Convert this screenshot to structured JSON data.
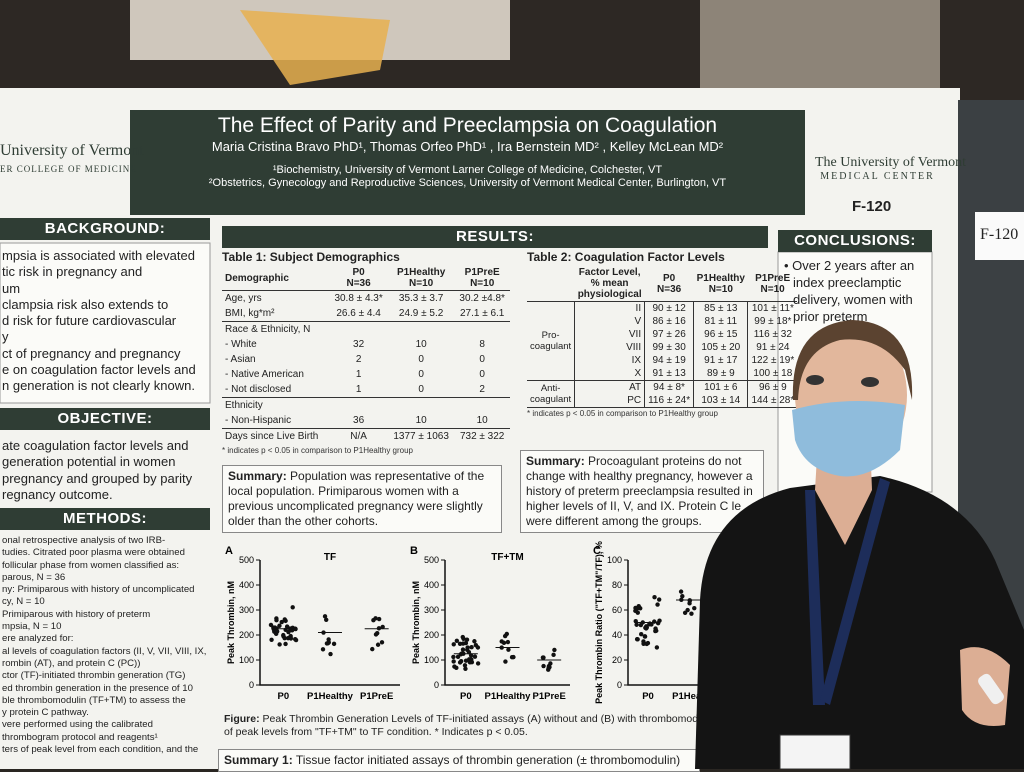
{
  "header": {
    "title": "The Effect of Parity and Preeclampsia on Coagulation",
    "authors": "Maria Cristina Bravo PhD¹, Thomas Orfeo PhD¹ , Ira Bernstein MD² , Kelley McLean MD²",
    "affiliations": [
      "¹Biochemistry, University of Vermont Larner College of Medicine, Colchester, VT",
      "²Obstetrics, Gynecology and Reproductive Sciences, University of Vermont Medical Center, Burlington, VT"
    ],
    "logo_left": [
      "University of Vermont",
      "ER COLLEGE OF MEDICINE"
    ],
    "logo_right": [
      "The University of Vermont",
      "MEDICAL CENTER"
    ],
    "booth": "F-120",
    "wall_sign": "F-120"
  },
  "background": {
    "heading": "BACKGROUND:",
    "lines": [
      "mpsia is associated with elevated",
      "tic risk in pregnancy and",
      "um",
      "clampsia risk also extends to",
      "d risk for future cardiovascular",
      "y",
      "ct of pregnancy and pregnancy",
      "e on coagulation factor levels and",
      "n generation is not clearly known."
    ]
  },
  "objective": {
    "heading": "OBJECTIVE:",
    "lines": [
      "ate coagulation factor levels and",
      "generation potential in women",
      "pregnancy and grouped by parity",
      "regnancy outcome."
    ]
  },
  "methods": {
    "heading": "METHODS:",
    "lines": [
      "onal retrospective analysis of two IRB-",
      "tudies. Citrated poor plasma were obtained",
      "follicular phase from women classified as:",
      "parous, N = 36",
      "ny: Primiparous with history of uncomplicated",
      "cy, N = 10",
      "Primiparous with history of preterm",
      "mpsia, N = 10",
      "ere analyzed for:",
      "al levels of coagulation factors (II, V, VII, VIII, IX,",
      "rombin (AT), and protein C (PC))",
      "ctor (TF)-initiated thrombin generation (TG)",
      "ed thrombin generation in the presence of 10",
      "ble thrombomodulin (TF+TM) to assess the",
      "y protein C pathway.",
      "vere performed using the calibrated",
      "thrombogram protocol and reagents¹",
      "ters of peak level from each condition, and the"
    ]
  },
  "results": {
    "heading": "RESULTS:"
  },
  "table1": {
    "title": "Table 1: Subject Demographics",
    "header": [
      [
        "Demographic"
      ],
      [
        "P0",
        "N=36"
      ],
      [
        "P1Healthy",
        "N=10"
      ],
      [
        "P1PreE",
        "N=10"
      ]
    ],
    "rows": [
      [
        "Age, yrs",
        "30.8 ± 4.3*",
        "35.3 ± 3.7",
        "30.2 ±4.8*"
      ],
      [
        "BMI, kg*m²",
        "26.6 ± 4.4",
        "24.9 ± 5.2",
        "27.1 ± 6.1"
      ],
      [
        "Race & Ethnicity, N"
      ],
      [
        "- White",
        "32",
        "10",
        "8"
      ],
      [
        "- Asian",
        "2",
        "0",
        "0"
      ],
      [
        "- Native American",
        "1",
        "0",
        "0"
      ],
      [
        "- Not disclosed",
        "1",
        "0",
        "2"
      ],
      [
        "Ethnicity"
      ],
      [
        "- Non-Hispanic",
        "36",
        "10",
        "10"
      ],
      [
        "Days since Live Birth",
        "N/A",
        "1377 ± 1063",
        "732 ± 322"
      ]
    ],
    "footnote": "* indicates p < 0.05 in comparison to P1Healthy group"
  },
  "table2": {
    "title": "Table 2: Coagulation Factor Levels",
    "header": [
      [
        "Factor Level,",
        "% mean",
        "physiological"
      ],
      [
        "P0",
        "N=36"
      ],
      [
        "P1Healthy",
        "N=10"
      ],
      [
        "P1PreE",
        "N=10"
      ]
    ],
    "groups": [
      {
        "label": "Pro-coagulant",
        "rows": [
          [
            "II",
            "90 ± 12",
            "85 ± 13",
            "101 ± 11*"
          ],
          [
            "V",
            "86 ± 16",
            "81 ± 11",
            "99 ± 18*"
          ],
          [
            "VII",
            "97 ± 26",
            "96 ± 15",
            "116 ± 32"
          ],
          [
            "VIII",
            "99 ± 30",
            "105 ± 20",
            "91 ± 24"
          ],
          [
            "IX",
            "94 ± 19",
            "91 ± 17",
            "122 ± 19*"
          ],
          [
            "X",
            "91 ± 13",
            "89 ± 9",
            "100 ± 18"
          ]
        ]
      },
      {
        "label": "Anti-coagulant",
        "rows": [
          [
            "AT",
            "94 ± 8*",
            "101 ± 6",
            "96 ± 9"
          ],
          [
            "PC",
            "116 ± 24*",
            "103 ± 14",
            "144 ± 28*"
          ]
        ]
      }
    ],
    "footnote": "* indicates p < 0.05 in comparison to P1Healthy group"
  },
  "summary1": {
    "label": "Summary:",
    "text": "Population was representative of the local population. Primiparous women with a previous uncomplicated pregnancy were slightly older than the other cohorts."
  },
  "summary2": {
    "label": "Summary:",
    "text": "Procoagulant proteins do not change with healthy pregnancy, however a history of preterm preeclampsia resulted in higher levels of II, V, and IX. Protein C le were different among the groups."
  },
  "conclusions": {
    "heading": "CONCLUSIONS:",
    "lines": [
      "Over 2 years after an",
      "index preeclamptic",
      "delivery, women with",
      "prior preterm"
    ]
  },
  "figure": {
    "panels": [
      {
        "letter": "A",
        "title": "TF",
        "ylabel": "Peak Thrombin, nM",
        "yticks": [
          "500",
          "400",
          "300",
          "200",
          "100",
          "0"
        ],
        "xlabels": [
          "P0",
          "P1Healthy",
          "P1PreE"
        ]
      },
      {
        "letter": "B",
        "title": "TF+TM",
        "ylabel": "Peak Thrombin, nM",
        "yticks": [
          "500",
          "400",
          "300",
          "200",
          "100",
          "0"
        ],
        "xlabels": [
          "P0",
          "P1Healthy",
          "P1PreE"
        ]
      },
      {
        "letter": "C",
        "ylabel": "Peak Thrombin Ratio (\"TF+TM\"/TF), %",
        "yticks": [
          "100",
          "80",
          "60",
          "40",
          "20",
          "0"
        ],
        "xlabels": [
          "P0",
          "P1Heal"
        ]
      }
    ],
    "caption_label": "Figure:",
    "caption": [
      "Peak Thrombin Generation Levels of TF-initiated assays (A) without and (B) with thrombomodu",
      "of peak levels from \"TF+TM\" to TF condition. * Indicates p < 0.05."
    ]
  },
  "summary3": {
    "label": "Summary 1:",
    "text": "Tissue factor initiated assays of thrombin generation (± thrombomodulin)"
  }
}
